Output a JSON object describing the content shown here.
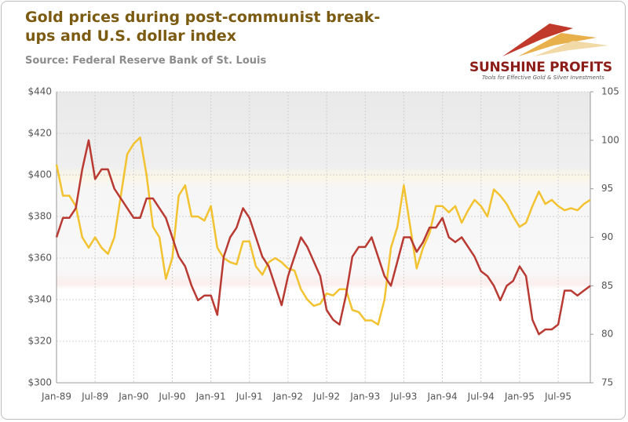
{
  "chart_data": {
    "type": "line",
    "title": "Gold prices during post-communist break-ups and U.S. dollar index",
    "subtitle": "Source: Federal Reserve Bank of St. Louis",
    "categories": [
      "Jan-89",
      null,
      null,
      null,
      null,
      null,
      "Jul-89",
      null,
      null,
      null,
      null,
      null,
      "Jan-90",
      null,
      null,
      null,
      null,
      null,
      "Jul-90",
      null,
      null,
      null,
      null,
      null,
      "Jan-91",
      null,
      null,
      null,
      null,
      null,
      "Jul-91",
      null,
      null,
      null,
      null,
      null,
      "Jan-92",
      null,
      null,
      null,
      null,
      null,
      "Jul-92",
      null,
      null,
      null,
      null,
      null,
      "Jan-93",
      null,
      null,
      null,
      null,
      null,
      "Jul-93",
      null,
      null,
      null,
      null,
      null,
      "Jan-94",
      null,
      null,
      null,
      null,
      null,
      "Jul-94",
      null,
      null,
      null,
      null,
      null,
      "Jan-95",
      null,
      null,
      null,
      null,
      null,
      "Jul-95",
      null,
      null,
      null,
      null,
      null
    ],
    "series": [
      {
        "color": "#f2c230",
        "values": [
          405,
          390,
          390,
          385,
          370,
          365,
          370,
          365,
          362,
          370,
          390,
          410,
          415,
          418,
          400,
          375,
          370,
          350,
          360,
          390,
          395,
          380,
          380,
          378,
          385,
          365,
          360,
          358,
          357,
          368,
          368,
          356,
          352,
          358,
          360,
          358,
          355,
          354,
          345,
          340,
          337,
          338,
          343,
          342,
          345,
          345,
          335,
          334,
          330,
          330,
          328,
          340,
          365,
          375,
          395,
          375,
          355,
          365,
          372,
          385,
          385,
          382,
          385,
          377,
          383,
          388,
          385,
          380,
          393,
          390,
          386,
          380,
          375,
          377,
          385,
          392,
          386,
          388,
          385,
          383,
          384,
          383,
          386,
          388
        ]
      },
      {
        "color": "#b83a32",
        "axis": "y2",
        "values": [
          90,
          92,
          92,
          93,
          97,
          100,
          96,
          97,
          97,
          95,
          94,
          93,
          92,
          92,
          94,
          94,
          93,
          92,
          90,
          88,
          87,
          85,
          83.5,
          84,
          84,
          82,
          88,
          90,
          91,
          93,
          92,
          90,
          88,
          87,
          85,
          83,
          86,
          88,
          90,
          89,
          87.5,
          86,
          82.5,
          81.5,
          81,
          84,
          88,
          89,
          89,
          90,
          88,
          86,
          85,
          87.5,
          90,
          90,
          88.5,
          89.5,
          91,
          91,
          92,
          90,
          89.5,
          90,
          89,
          88,
          86.5,
          86,
          85,
          83.5,
          85,
          85.5,
          87,
          86,
          81.5,
          80,
          80.5,
          80.5,
          81,
          84.5,
          84.5,
          84,
          84.5,
          85
        ]
      }
    ],
    "ylim": [
      300,
      440
    ],
    "yticks": [
      {
        "value": 300,
        "label": "$300"
      },
      {
        "value": 320,
        "label": "$320"
      },
      {
        "value": 340,
        "label": "$340"
      },
      {
        "value": 360,
        "label": "$360"
      },
      {
        "value": 380,
        "label": "$380"
      },
      {
        "value": 400,
        "label": "$400"
      },
      {
        "value": 420,
        "label": "$420"
      },
      {
        "value": 440,
        "label": "$440"
      }
    ],
    "y2lim": [
      75,
      105
    ],
    "y2ticks": [
      75,
      80,
      85,
      90,
      95,
      100,
      105
    ],
    "grid": true
  },
  "logo": {
    "name": "SUNSHINE PROFITS",
    "tagline": "Tools for Effective Gold & Silver Investments"
  }
}
